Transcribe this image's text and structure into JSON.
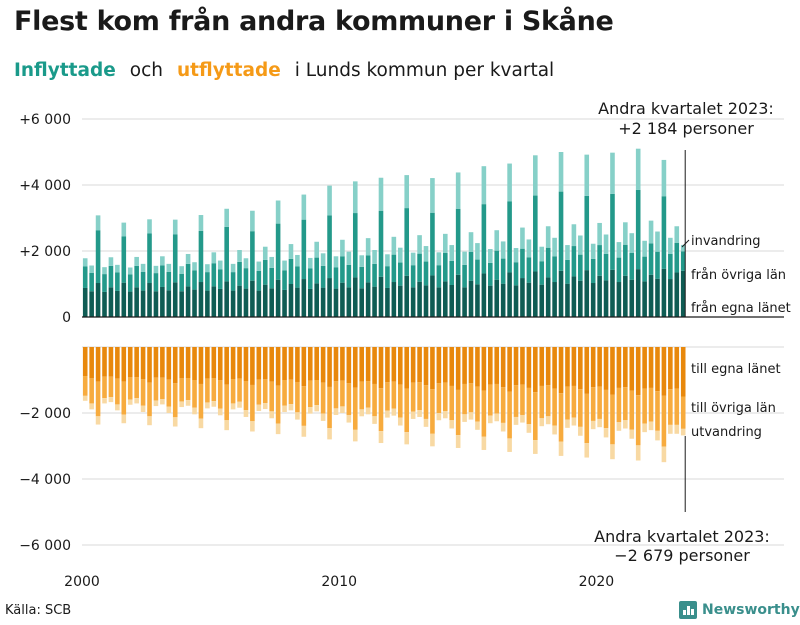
{
  "header": {
    "title": "Flest kom från andra kommuner i Skåne",
    "subtitle_in": "Inflyttade",
    "subtitle_och": "och",
    "subtitle_out": "utflyttade",
    "subtitle_rest": "i Lunds kommun per kvartal"
  },
  "footer": {
    "source": "Källa: SCB",
    "brand": "Newsworthy",
    "brand_icon": "bar-chart-icon"
  },
  "colors": {
    "in_own": "#0f5c54",
    "in_other": "#23998a",
    "in_immig": "#86d0c8",
    "out_own": "#e8880c",
    "out_other": "#f7ab3e",
    "out_emig": "#f8d9a3",
    "grid": "#d9d9d9",
    "axis": "#1a1a1a",
    "in_title": "#1a9a8a",
    "out_title": "#f59a17"
  },
  "chart_data": {
    "type": "bar",
    "stacked": true,
    "period": "quarterly, 2000 Q1 – 2023 Q2",
    "x_start_year": 2000,
    "quarters_per_year": 4,
    "x_tick_labels": [
      "2000",
      "2010",
      "2020"
    ],
    "y_tick_labels": [
      "+6 000",
      "+4 000",
      "+2 000",
      "0",
      "−2 000",
      "−4 000",
      "−6 000"
    ],
    "ylim": [
      -6500,
      6500
    ],
    "series": [
      {
        "name": "från egna länet",
        "group": "in",
        "values": [
          880,
          780,
          1030,
          760,
          900,
          790,
          1040,
          770,
          900,
          800,
          1030,
          780,
          910,
          810,
          1050,
          780,
          930,
          830,
          1060,
          800,
          930,
          850,
          1080,
          800,
          950,
          860,
          1100,
          800,
          980,
          870,
          1130,
          820,
          1000,
          890,
          1150,
          850,
          1020,
          890,
          1180,
          860,
          1040,
          900,
          1200,
          870,
          1050,
          920,
          1220,
          880,
          1060,
          950,
          1250,
          900,
          1070,
          960,
          1260,
          900,
          1080,
          970,
          1280,
          900,
          1100,
          990,
          1320,
          950,
          1130,
          1010,
          1350,
          960,
          1180,
          1040,
          1380,
          980,
          1200,
          1060,
          1400,
          1010,
          1230,
          1100,
          1420,
          1030,
          1250,
          1110,
          1430,
          1060,
          1250,
          1130,
          1450,
          1080,
          1280,
          1160,
          1460,
          1150,
          1350,
          1400
        ]
      },
      {
        "name": "från övriga län",
        "group": "in",
        "values": [
          650,
          560,
          1600,
          540,
          650,
          560,
          1400,
          520,
          650,
          570,
          1500,
          550,
          650,
          560,
          1450,
          530,
          680,
          580,
          1550,
          560,
          700,
          590,
          1650,
          560,
          720,
          620,
          1500,
          600,
          750,
          620,
          1700,
          590,
          760,
          640,
          1800,
          620,
          780,
          660,
          1900,
          640,
          800,
          680,
          1950,
          650,
          820,
          690,
          2000,
          660,
          830,
          700,
          2050,
          670,
          850,
          720,
          1900,
          670,
          860,
          730,
          2000,
          680,
          870,
          750,
          2100,
          690,
          880,
          760,
          2150,
          700,
          890,
          770,
          2300,
          710,
          900,
          780,
          2400,
          720,
          920,
          790,
          2250,
          730,
          930,
          800,
          2300,
          740,
          940,
          810,
          2400,
          750,
          950,
          820,
          2200,
          760,
          900,
          590
        ]
      },
      {
        "name": "invandring",
        "group": "in",
        "values": [
          250,
          220,
          450,
          210,
          260,
          230,
          420,
          210,
          270,
          240,
          430,
          220,
          280,
          240,
          450,
          230,
          300,
          250,
          480,
          240,
          330,
          270,
          550,
          250,
          360,
          300,
          620,
          280,
          400,
          330,
          700,
          300,
          450,
          350,
          760,
          320,
          480,
          380,
          900,
          340,
          500,
          400,
          960,
          350,
          520,
          420,
          1000,
          360,
          540,
          450,
          1000,
          380,
          560,
          470,
          1050,
          390,
          580,
          480,
          1100,
          400,
          600,
          500,
          1150,
          420,
          620,
          520,
          1150,
          430,
          640,
          540,
          1220,
          440,
          650,
          560,
          1200,
          450,
          660,
          580,
          1250,
          460,
          670,
          590,
          1250,
          470,
          680,
          600,
          1250,
          480,
          690,
          610,
          1100,
          490,
          500,
          194
        ]
      },
      {
        "name": "till egna länet",
        "group": "out",
        "values": [
          -880,
          -950,
          -1050,
          -900,
          -900,
          -960,
          -1050,
          -920,
          -910,
          -980,
          -1080,
          -930,
          -930,
          -990,
          -1100,
          -950,
          -940,
          -1000,
          -1120,
          -960,
          -950,
          -1010,
          -1140,
          -970,
          -960,
          -1030,
          -1150,
          -990,
          -980,
          -1050,
          -1170,
          -1000,
          -990,
          -1060,
          -1190,
          -1020,
          -1000,
          -1080,
          -1210,
          -1040,
          -1020,
          -1100,
          -1230,
          -1050,
          -1040,
          -1120,
          -1250,
          -1070,
          -1050,
          -1140,
          -1260,
          -1080,
          -1070,
          -1160,
          -1280,
          -1100,
          -1080,
          -1180,
          -1300,
          -1120,
          -1100,
          -1200,
          -1320,
          -1140,
          -1120,
          -1220,
          -1350,
          -1160,
          -1140,
          -1240,
          -1370,
          -1180,
          -1160,
          -1260,
          -1400,
          -1200,
          -1180,
          -1280,
          -1420,
          -1220,
          -1200,
          -1300,
          -1440,
          -1240,
          -1220,
          -1320,
          -1460,
          -1260,
          -1240,
          -1340,
          -1480,
          -1280,
          -1260,
          -1500
        ]
      },
      {
        "name": "till övriga län",
        "group": "out",
        "values": [
          -600,
          -760,
          -1050,
          -650,
          -620,
          -780,
          -1000,
          -670,
          -640,
          -800,
          -1020,
          -690,
          -650,
          -820,
          -1030,
          -700,
          -670,
          -840,
          -1050,
          -720,
          -690,
          -860,
          -1080,
          -740,
          -700,
          -880,
          -1100,
          -760,
          -720,
          -900,
          -1150,
          -780,
          -740,
          -920,
          -1200,
          -800,
          -760,
          -940,
          -1250,
          -820,
          -780,
          -960,
          -1280,
          -840,
          -800,
          -980,
          -1300,
          -860,
          -820,
          -1000,
          -1320,
          -880,
          -840,
          -1020,
          -1350,
          -900,
          -860,
          -1040,
          -1370,
          -920,
          -880,
          -1060,
          -1400,
          -940,
          -900,
          -1080,
          -1420,
          -960,
          -920,
          -1100,
          -1450,
          -980,
          -940,
          -1120,
          -1470,
          -1000,
          -960,
          -1140,
          -1490,
          -1020,
          -980,
          -1160,
          -1510,
          -1040,
          -1000,
          -1180,
          -1520,
          -1060,
          -1020,
          -1200,
          -1540,
          -1080,
          -1100,
          -980
        ]
      },
      {
        "name": "utvandring",
        "group": "out",
        "values": [
          -150,
          -180,
          -250,
          -160,
          -150,
          -180,
          -260,
          -160,
          -160,
          -190,
          -270,
          -170,
          -160,
          -190,
          -280,
          -170,
          -170,
          -200,
          -290,
          -180,
          -170,
          -200,
          -300,
          -180,
          -180,
          -210,
          -310,
          -190,
          -180,
          -210,
          -320,
          -190,
          -190,
          -220,
          -330,
          -200,
          -190,
          -220,
          -340,
          -200,
          -200,
          -230,
          -350,
          -210,
          -200,
          -230,
          -360,
          -210,
          -210,
          -240,
          -370,
          -220,
          -210,
          -240,
          -380,
          -220,
          -220,
          -250,
          -390,
          -230,
          -220,
          -250,
          -400,
          -230,
          -230,
          -260,
          -410,
          -240,
          -230,
          -260,
          -420,
          -240,
          -240,
          -270,
          -430,
          -250,
          -240,
          -270,
          -440,
          -250,
          -250,
          -280,
          -450,
          -260,
          -250,
          -280,
          -460,
          -260,
          -260,
          -290,
          -470,
          -270,
          -270,
          -199
        ]
      }
    ],
    "legend_labels": {
      "in": [
        "invandring",
        "från övriga län",
        "från egna länet"
      ],
      "out": [
        "till egna länet",
        "till övriga län",
        "utvandring"
      ]
    },
    "annotations": [
      {
        "text_line1": "Andra kvartalet 2023:",
        "text_line2": "+2 184 personer",
        "value": 2184
      },
      {
        "text_line1": "Andra kvartalet 2023:",
        "text_line2": "−2 679 personer",
        "value": -2679
      }
    ],
    "grid": true
  }
}
